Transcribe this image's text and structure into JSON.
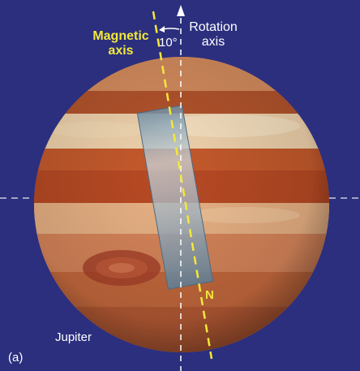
{
  "figure": {
    "magnetic_axis_label": [
      "Magnetic",
      "axis"
    ],
    "rotation_axis_label": [
      "Rotation",
      "axis"
    ],
    "tilt_angle_label": "10°",
    "north_pole_label": "N",
    "planet_label": "Jupiter",
    "panel_label": "(a)"
  },
  "colors": {
    "background": "#2b2f7e",
    "magnetic_axis": "#f3e83a",
    "rotation_axis": "#ffffff",
    "magnet_bar": "#8fa7b8"
  }
}
